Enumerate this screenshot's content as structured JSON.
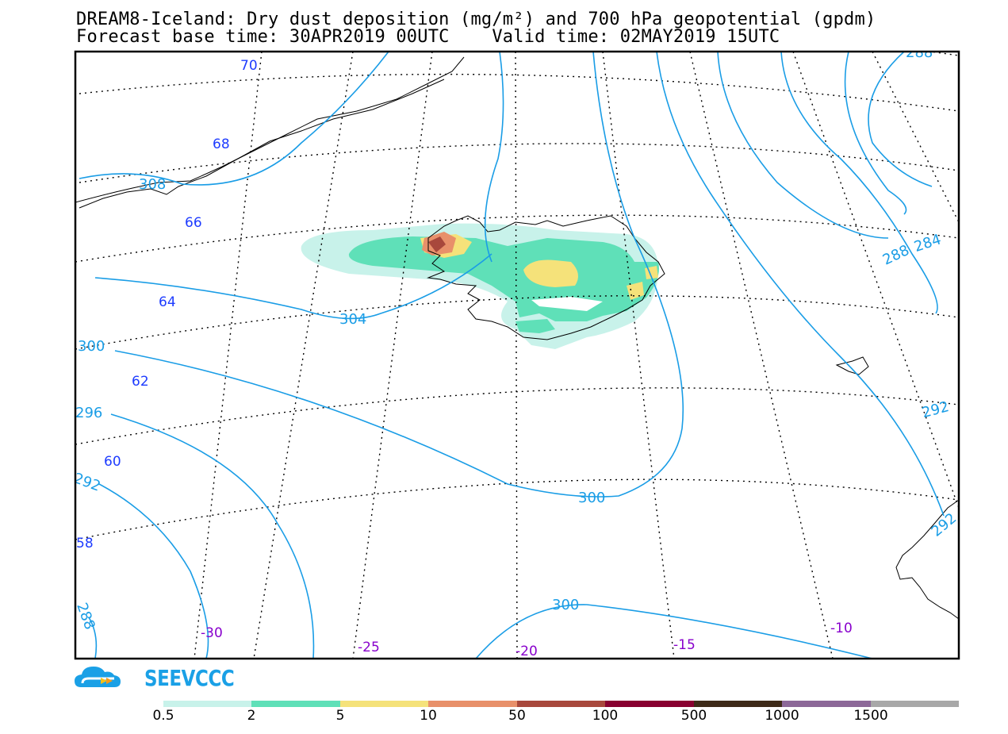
{
  "title": {
    "line1": "DREAM8-Iceland: Dry dust deposition (mg/m²) and 700 hPa geopotential (gpdm)",
    "line2": "Forecast base time: 30APR2019 00UTC    Valid time: 02MAY2019 15UTC"
  },
  "brand": {
    "name": "SEEVCCC",
    "color": "#1aa0e6",
    "icon": "cloud-logo-icon"
  },
  "map": {
    "latitude_labels": [
      "70",
      "68",
      "66",
      "64",
      "62",
      "60",
      "58"
    ],
    "longitude_labels": [
      "-30",
      "-25",
      "-20",
      "-15",
      "-10"
    ],
    "contour_labels": [
      "308",
      "304",
      "300",
      "296",
      "292",
      "288",
      "300",
      "300",
      "288",
      "284",
      "292",
      "292",
      "288"
    ],
    "contour_color": "#1a9de6",
    "coast_color": "#000000",
    "lat_label_color": "#1e3cff",
    "lon_label_color": "#8800cc"
  },
  "legend": {
    "labels": [
      "0.5",
      "2",
      "5",
      "10",
      "50",
      "100",
      "500",
      "1000",
      "1500"
    ],
    "colors": [
      "#c8f2ea",
      "#5fe0b8",
      "#f5e27a",
      "#e8906a",
      "#a8483c",
      "#880030",
      "#3e2a18",
      "#8c6898",
      "#a8a8a8"
    ]
  }
}
